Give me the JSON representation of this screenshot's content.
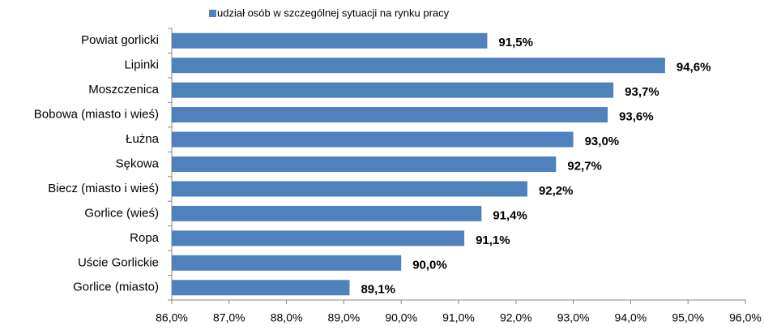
{
  "chart_data": {
    "type": "bar",
    "orientation": "horizontal",
    "legend": "udział osób w szczególnej sytuacji na rynku pracy",
    "legend_position": "top",
    "color": "#4f81bd",
    "categories": [
      "Powiat gorlicki",
      "Lipinki",
      "Moszczenica",
      "Bobowa (miasto  i wieś)",
      "Łużna",
      "Sękowa",
      "Biecz (miasto  i wieś)",
      "Gorlice (wieś)",
      "Ropa",
      "Uście Gorlickie",
      "Gorlice (miasto)"
    ],
    "values": [
      91.5,
      94.6,
      93.7,
      93.6,
      93.0,
      92.7,
      92.2,
      91.4,
      91.1,
      90.0,
      89.1
    ],
    "value_labels": [
      "91,5%",
      "94,6%",
      "93,7%",
      "93,6%",
      "93,0%",
      "92,7%",
      "92,2%",
      "91,4%",
      "91,1%",
      "90,0%",
      "89,1%"
    ],
    "xlim": [
      86,
      96
    ],
    "xticks": [
      {
        "value": 86,
        "label": "86,0%"
      },
      {
        "value": 87,
        "label": "87,0%"
      },
      {
        "value": 88,
        "label": "88,0%"
      },
      {
        "value": 89,
        "label": "89,0%"
      },
      {
        "value": 90,
        "label": "90,0%"
      },
      {
        "value": 91,
        "label": "91,0%"
      },
      {
        "value": 92,
        "label": "92,0%"
      },
      {
        "value": 93,
        "label": "93,0%"
      },
      {
        "value": 94,
        "label": "94,0%"
      },
      {
        "value": 95,
        "label": "95,0%"
      },
      {
        "value": 96,
        "label": "96,0%"
      }
    ],
    "grid": false
  }
}
